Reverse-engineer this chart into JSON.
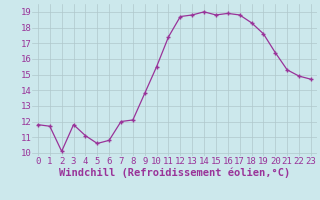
{
  "hours": [
    0,
    1,
    2,
    3,
    4,
    5,
    6,
    7,
    8,
    9,
    10,
    11,
    12,
    13,
    14,
    15,
    16,
    17,
    18,
    19,
    20,
    21,
    22,
    23
  ],
  "values": [
    11.8,
    11.7,
    10.1,
    11.8,
    11.1,
    10.6,
    10.8,
    12.0,
    12.1,
    13.8,
    15.5,
    17.4,
    18.7,
    18.8,
    19.0,
    18.8,
    18.9,
    18.8,
    18.3,
    17.6,
    16.4,
    15.3,
    14.9,
    14.7
  ],
  "line_color": "#993399",
  "marker_color": "#993399",
  "bg_color": "#cce8ec",
  "grid_color": "#b0c8cc",
  "xlabel": "Windchill (Refroidissement éolien,°C)",
  "xlim": [
    -0.5,
    23.5
  ],
  "ylim": [
    9.8,
    19.5
  ],
  "yticks": [
    10,
    11,
    12,
    13,
    14,
    15,
    16,
    17,
    18,
    19
  ],
  "xticks": [
    0,
    1,
    2,
    3,
    4,
    5,
    6,
    7,
    8,
    9,
    10,
    11,
    12,
    13,
    14,
    15,
    16,
    17,
    18,
    19,
    20,
    21,
    22,
    23
  ],
  "font_color": "#993399",
  "tick_fontsize": 6.5,
  "xlabel_fontsize": 7.5
}
